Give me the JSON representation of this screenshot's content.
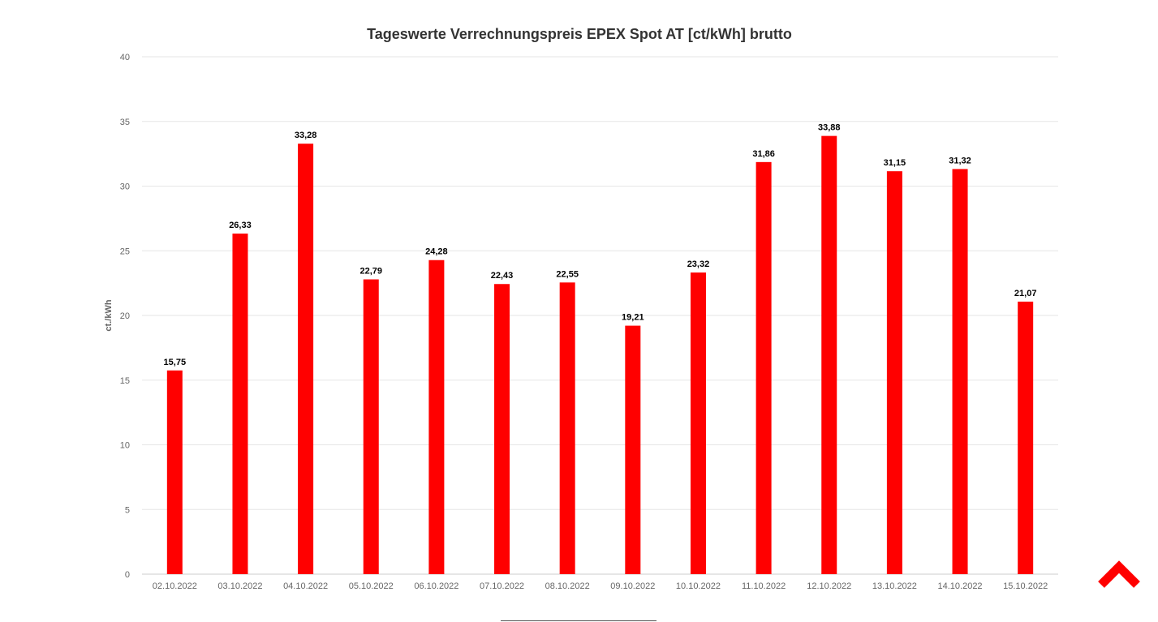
{
  "chart_data": {
    "type": "bar",
    "title": "Tageswerte Verrechnungspreis EPEX Spot AT [ct/kWh] brutto",
    "ylabel": "ct./kWh",
    "xlabel": "",
    "ylim": [
      0,
      40
    ],
    "yticks": [
      "0",
      "5",
      "10",
      "15",
      "20",
      "25",
      "30",
      "35",
      "40"
    ],
    "grid": true,
    "categories": [
      "02.10.2022",
      "03.10.2022",
      "04.10.2022",
      "05.10.2022",
      "06.10.2022",
      "07.10.2022",
      "08.10.2022",
      "09.10.2022",
      "10.10.2022",
      "11.10.2022",
      "12.10.2022",
      "13.10.2022",
      "14.10.2022",
      "15.10.2022"
    ],
    "values": [
      15.75,
      26.33,
      33.28,
      22.79,
      24.28,
      22.43,
      22.55,
      19.21,
      23.32,
      31.86,
      33.88,
      31.15,
      31.32,
      21.07
    ],
    "value_labels": [
      "15,75",
      "26,33",
      "33,28",
      "22,79",
      "24,28",
      "22,43",
      "22,55",
      "19,21",
      "23,32",
      "31,86",
      "33,88",
      "31,15",
      "31,32",
      "21,07"
    ],
    "bar_color": "#ff0000"
  },
  "scroll_top": {
    "icon": "chevron-up-icon",
    "color": "#ff0000"
  }
}
